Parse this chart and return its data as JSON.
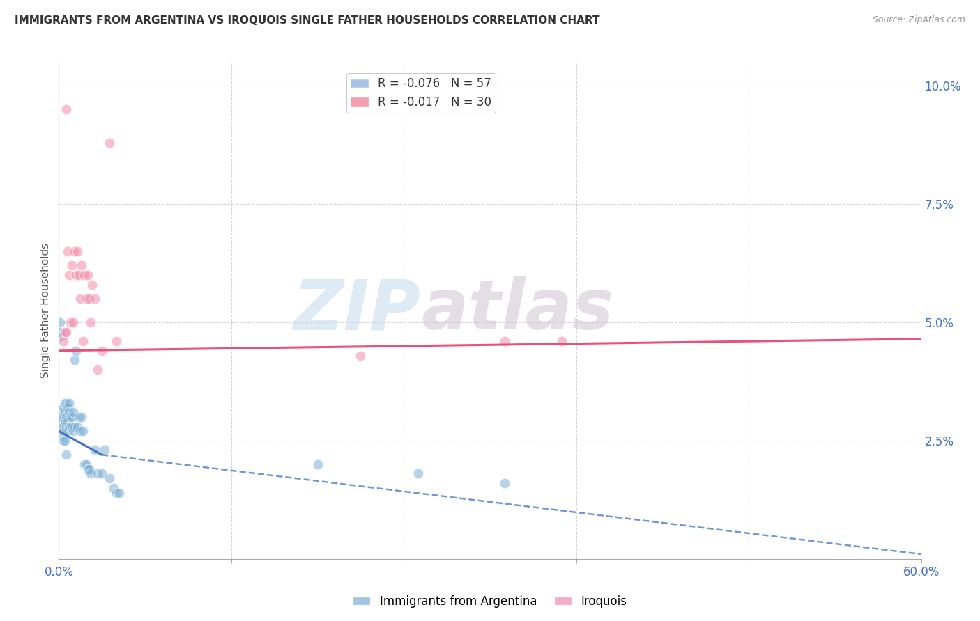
{
  "title": "IMMIGRANTS FROM ARGENTINA VS IROQUOIS SINGLE FATHER HOUSEHOLDS CORRELATION CHART",
  "source": "Source: ZipAtlas.com",
  "ylabel": "Single Father Households",
  "xlim": [
    0.0,
    0.6
  ],
  "ylim": [
    0.0,
    0.105
  ],
  "xticks": [
    0.0,
    0.12,
    0.24,
    0.36,
    0.48,
    0.6
  ],
  "xticklabels": [
    "0.0%",
    "",
    "",
    "",
    "",
    "60.0%"
  ],
  "yticks": [
    0.0,
    0.025,
    0.05,
    0.075,
    0.1
  ],
  "yticklabels": [
    "",
    "2.5%",
    "5.0%",
    "7.5%",
    "10.0%"
  ],
  "legend_entries": [
    {
      "label": "R = -0.076   N = 57",
      "color": "#a8c4e0"
    },
    {
      "label": "R = -0.017   N = 30",
      "color": "#f4a0b0"
    }
  ],
  "argentina_scatter": {
    "x": [
      0.001,
      0.001,
      0.001,
      0.002,
      0.002,
      0.002,
      0.002,
      0.002,
      0.003,
      0.003,
      0.003,
      0.003,
      0.003,
      0.004,
      0.004,
      0.004,
      0.004,
      0.005,
      0.005,
      0.005,
      0.005,
      0.006,
      0.006,
      0.006,
      0.007,
      0.007,
      0.007,
      0.008,
      0.008,
      0.009,
      0.009,
      0.01,
      0.01,
      0.011,
      0.011,
      0.012,
      0.013,
      0.014,
      0.015,
      0.016,
      0.017,
      0.018,
      0.019,
      0.02,
      0.021,
      0.022,
      0.025,
      0.027,
      0.03,
      0.032,
      0.035,
      0.038,
      0.04,
      0.042,
      0.18,
      0.25,
      0.31
    ],
    "y": [
      0.05,
      0.048,
      0.03,
      0.047,
      0.031,
      0.029,
      0.028,
      0.026,
      0.032,
      0.03,
      0.028,
      0.027,
      0.025,
      0.033,
      0.031,
      0.029,
      0.025,
      0.033,
      0.03,
      0.028,
      0.022,
      0.032,
      0.029,
      0.027,
      0.033,
      0.031,
      0.028,
      0.03,
      0.028,
      0.03,
      0.028,
      0.031,
      0.027,
      0.042,
      0.028,
      0.044,
      0.028,
      0.03,
      0.027,
      0.03,
      0.027,
      0.02,
      0.02,
      0.019,
      0.019,
      0.018,
      0.023,
      0.018,
      0.018,
      0.023,
      0.017,
      0.015,
      0.014,
      0.014,
      0.02,
      0.018,
      0.016
    ]
  },
  "iroquois_scatter": {
    "x": [
      0.003,
      0.004,
      0.005,
      0.006,
      0.007,
      0.008,
      0.009,
      0.01,
      0.011,
      0.012,
      0.013,
      0.014,
      0.015,
      0.016,
      0.017,
      0.018,
      0.019,
      0.02,
      0.021,
      0.022,
      0.023,
      0.025,
      0.027,
      0.03,
      0.035,
      0.04,
      0.21,
      0.31,
      0.35,
      0.005
    ],
    "y": [
      0.046,
      0.048,
      0.048,
      0.065,
      0.06,
      0.05,
      0.062,
      0.05,
      0.065,
      0.06,
      0.065,
      0.06,
      0.055,
      0.062,
      0.046,
      0.06,
      0.055,
      0.06,
      0.055,
      0.05,
      0.058,
      0.055,
      0.04,
      0.044,
      0.088,
      0.046,
      0.043,
      0.046,
      0.046,
      0.095
    ]
  },
  "argentina_trend_solid": {
    "x": [
      0.0,
      0.03
    ],
    "y": [
      0.027,
      0.022
    ]
  },
  "argentina_trend_dash": {
    "x": [
      0.03,
      0.6
    ],
    "y": [
      0.022,
      0.001
    ]
  },
  "iroquois_trend": {
    "x": [
      0.0,
      0.6
    ],
    "y": [
      0.044,
      0.0465
    ]
  },
  "scatter_color_argentina": "#7bafd4",
  "scatter_color_iroquois": "#f28baa",
  "trend_color_argentina": "#4472c4",
  "trend_color_iroquois": "#e8527a",
  "watermark_top": "ZIP",
  "watermark_bottom": "atlas",
  "background_color": "#ffffff",
  "grid_color": "#cccccc",
  "axis_color": "#4472c4",
  "title_color": "#333333"
}
